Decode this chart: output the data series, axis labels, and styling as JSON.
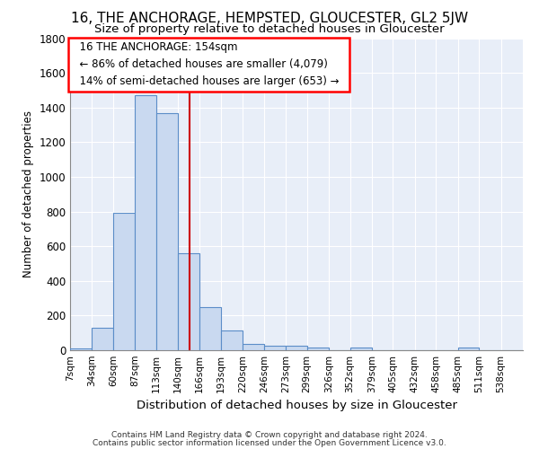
{
  "title": "16, THE ANCHORAGE, HEMPSTED, GLOUCESTER, GL2 5JW",
  "subtitle": "Size of property relative to detached houses in Gloucester",
  "xlabel": "Distribution of detached houses by size in Gloucester",
  "ylabel": "Number of detached properties",
  "footer_line1": "Contains HM Land Registry data © Crown copyright and database right 2024.",
  "footer_line2": "Contains public sector information licensed under the Open Government Licence v3.0.",
  "annotation_line1": "16 THE ANCHORAGE: 154sqm",
  "annotation_line2": "← 86% of detached houses are smaller (4,079)",
  "annotation_line3": "14% of semi-detached houses are larger (653) →",
  "property_size": 154,
  "bar_color": "#c9d9f0",
  "bar_edge_color": "#5b8dc8",
  "vline_color": "#cc0000",
  "background_color": "#ffffff",
  "plot_bg_color": "#e8eef8",
  "grid_color": "#ffffff",
  "categories": [
    "7sqm",
    "34sqm",
    "60sqm",
    "87sqm",
    "113sqm",
    "140sqm",
    "166sqm",
    "193sqm",
    "220sqm",
    "246sqm",
    "273sqm",
    "299sqm",
    "326sqm",
    "352sqm",
    "379sqm",
    "405sqm",
    "432sqm",
    "458sqm",
    "485sqm",
    "511sqm",
    "538sqm"
  ],
  "values": [
    10,
    130,
    795,
    1470,
    1370,
    560,
    247,
    112,
    35,
    28,
    28,
    15,
    0,
    18,
    0,
    0,
    0,
    0,
    18,
    0,
    0
  ],
  "bin_edges": [
    7,
    34,
    60,
    87,
    113,
    140,
    166,
    193,
    220,
    246,
    273,
    299,
    326,
    352,
    379,
    405,
    432,
    458,
    485,
    511,
    538,
    565
  ],
  "ylim": [
    0,
    1800
  ],
  "xlim": [
    7,
    565
  ],
  "yticks": [
    0,
    200,
    400,
    600,
    800,
    1000,
    1200,
    1400,
    1600,
    1800
  ]
}
